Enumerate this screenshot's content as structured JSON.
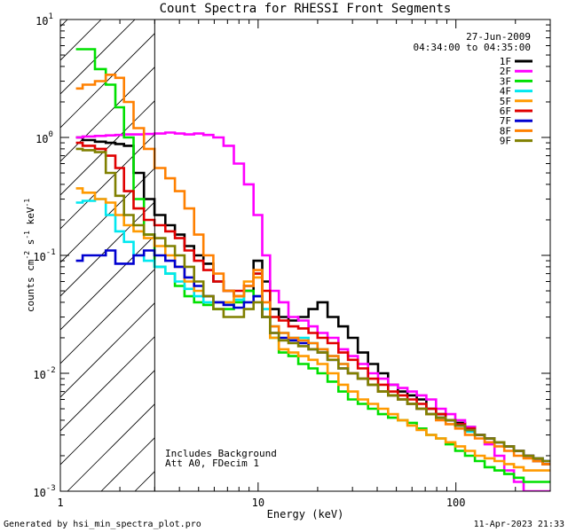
{
  "chart_data": {
    "type": "line",
    "step": true,
    "title": "Count Spectra for RHESSI Front Segments",
    "xlabel": "Energy (keV)",
    "ylabel_parts": {
      "a": "counts cm",
      "b": "-2",
      "c": " s",
      "d": "-1",
      "e": " keV",
      "f": "-1"
    },
    "xscale": "log",
    "yscale": "log",
    "xlim": [
      1,
      300
    ],
    "ylim": [
      0.001,
      10
    ],
    "x_ticks": [
      {
        "value": 1,
        "label": "1"
      },
      {
        "value": 10,
        "label": "10"
      },
      {
        "value": 100,
        "label": "100"
      }
    ],
    "y_ticks": [
      {
        "value": 10,
        "base": "10",
        "exp": "1"
      },
      {
        "value": 1,
        "base": "10",
        "exp": "0"
      },
      {
        "value": 0.1,
        "base": "10",
        "exp": "-1"
      },
      {
        "value": 0.01,
        "base": "10",
        "exp": "-2"
      },
      {
        "value": 0.001,
        "base": "10",
        "exp": "-3"
      }
    ],
    "date": "27-Jun-2009",
    "time_range": "04:34:00 to 04:35:00",
    "note_lines": [
      "Includes Background",
      "Att A0, FDecim 1"
    ],
    "shaded_region": {
      "from_keV": 1,
      "to_keV": 3,
      "pattern": "diagonal hatch"
    },
    "legend_position": "top-right",
    "x_energies": [
      1.2,
      1.4,
      1.6,
      1.8,
      2.0,
      2.2,
      2.5,
      2.8,
      3.2,
      3.6,
      4.0,
      4.5,
      5.0,
      5.6,
      6.3,
      7.1,
      8.0,
      9.0,
      10.0,
      11.0,
      12.0,
      13.5,
      15.0,
      17.0,
      19.0,
      21.0,
      24.0,
      27.0,
      30.0,
      34.0,
      38.0,
      43.0,
      48.0,
      54.0,
      60.0,
      67.0,
      75.0,
      84.0,
      94.0,
      105.0,
      118.0,
      132.0,
      148.0,
      166.0,
      186.0,
      208.0,
      233.0,
      260.0,
      290.0
    ],
    "series": [
      {
        "name": "1F",
        "color": "#000000",
        "values": [
          1.0,
          0.95,
          0.92,
          0.9,
          0.88,
          0.85,
          0.5,
          0.3,
          0.22,
          0.18,
          0.15,
          0.12,
          0.1,
          0.085,
          0.06,
          0.05,
          0.045,
          0.05,
          0.09,
          0.06,
          0.035,
          0.03,
          0.028,
          0.03,
          0.035,
          0.04,
          0.03,
          0.025,
          0.02,
          0.015,
          0.012,
          0.01,
          0.008,
          0.007,
          0.0065,
          0.006,
          0.005,
          0.0045,
          0.004,
          0.0038,
          0.0035,
          0.003,
          0.0028,
          0.0026,
          0.0024,
          0.0022,
          0.002,
          0.0018,
          0.0017
        ]
      },
      {
        "name": "2F",
        "color": "#ff00ff",
        "values": [
          1.0,
          1.02,
          1.03,
          1.04,
          1.05,
          1.06,
          1.06,
          1.07,
          1.08,
          1.1,
          1.08,
          1.06,
          1.08,
          1.05,
          1.0,
          0.85,
          0.6,
          0.4,
          0.22,
          0.1,
          0.05,
          0.04,
          0.03,
          0.028,
          0.025,
          0.022,
          0.02,
          0.016,
          0.014,
          0.012,
          0.01,
          0.009,
          0.008,
          0.0075,
          0.007,
          0.0065,
          0.006,
          0.005,
          0.0045,
          0.004,
          0.0035,
          0.003,
          0.0025,
          0.002,
          0.0015,
          0.0012,
          0.001,
          0.001,
          0.001
        ]
      },
      {
        "name": "3F",
        "color": "#00e000",
        "values": [
          5.6,
          5.6,
          3.8,
          2.8,
          1.8,
          1.0,
          0.3,
          0.15,
          0.08,
          0.07,
          0.055,
          0.045,
          0.04,
          0.038,
          0.035,
          0.035,
          0.04,
          0.05,
          0.045,
          0.03,
          0.02,
          0.015,
          0.014,
          0.012,
          0.011,
          0.01,
          0.0085,
          0.007,
          0.006,
          0.0055,
          0.005,
          0.0045,
          0.0042,
          0.004,
          0.0038,
          0.0034,
          0.003,
          0.0028,
          0.0025,
          0.0022,
          0.002,
          0.0018,
          0.0016,
          0.0015,
          0.0014,
          0.0013,
          0.0012,
          0.0012,
          0.0012
        ]
      },
      {
        "name": "4F",
        "color": "#00e8f0",
        "values": [
          0.28,
          0.29,
          0.3,
          0.22,
          0.16,
          0.13,
          0.1,
          0.09,
          0.08,
          0.07,
          0.06,
          0.052,
          0.045,
          0.04,
          0.04,
          0.04,
          0.042,
          0.055,
          0.07,
          0.035,
          0.025,
          0.022,
          0.02,
          0.02,
          0.018,
          0.016,
          0.014,
          0.012,
          0.01,
          0.009,
          0.008,
          0.007,
          0.0065,
          0.006,
          0.0055,
          0.005,
          0.0045,
          0.0042,
          0.004,
          0.0036,
          0.0032,
          0.003,
          0.0028,
          0.0026,
          0.0024,
          0.0022,
          0.002,
          0.0019,
          0.0018
        ]
      },
      {
        "name": "5F",
        "color": "#ff9a00",
        "values": [
          0.37,
          0.34,
          0.3,
          0.28,
          0.22,
          0.18,
          0.16,
          0.14,
          0.12,
          0.1,
          0.08,
          0.06,
          0.05,
          0.045,
          0.04,
          0.04,
          0.045,
          0.06,
          0.065,
          0.03,
          0.02,
          0.016,
          0.015,
          0.014,
          0.013,
          0.012,
          0.01,
          0.008,
          0.007,
          0.006,
          0.0055,
          0.005,
          0.0045,
          0.004,
          0.0036,
          0.0033,
          0.003,
          0.0028,
          0.0026,
          0.0024,
          0.0022,
          0.002,
          0.0019,
          0.0018,
          0.0017,
          0.0016,
          0.0015,
          0.0015,
          0.0015
        ]
      },
      {
        "name": "6F",
        "color": "#e00000",
        "values": [
          0.9,
          0.85,
          0.8,
          0.7,
          0.55,
          0.35,
          0.25,
          0.2,
          0.18,
          0.16,
          0.14,
          0.11,
          0.09,
          0.075,
          0.06,
          0.05,
          0.05,
          0.055,
          0.07,
          0.05,
          0.03,
          0.028,
          0.025,
          0.024,
          0.022,
          0.02,
          0.018,
          0.015,
          0.013,
          0.011,
          0.009,
          0.008,
          0.007,
          0.0065,
          0.006,
          0.0055,
          0.005,
          0.0045,
          0.004,
          0.0037,
          0.0034,
          0.003,
          0.0028,
          0.0026,
          0.0024,
          0.0022,
          0.002,
          0.0018,
          0.0017
        ]
      },
      {
        "name": "7F",
        "color": "#0000d0",
        "values": [
          0.09,
          0.1,
          0.1,
          0.11,
          0.085,
          0.085,
          0.1,
          0.11,
          0.1,
          0.09,
          0.08,
          0.065,
          0.055,
          0.045,
          0.04,
          0.038,
          0.036,
          0.04,
          0.045,
          0.03,
          0.022,
          0.02,
          0.019,
          0.018,
          0.016,
          0.015,
          0.013,
          0.011,
          0.01,
          0.009,
          0.008,
          0.007,
          0.0065,
          0.006,
          0.0055,
          0.005,
          0.0045,
          0.0042,
          0.004,
          0.0036,
          0.0033,
          0.003,
          0.0028,
          0.0026,
          0.0024,
          0.0022,
          0.002,
          0.0019,
          0.0018
        ]
      },
      {
        "name": "8F",
        "color": "#ff8000",
        "values": [
          2.6,
          2.8,
          3.0,
          3.4,
          3.2,
          2.0,
          1.2,
          0.8,
          0.55,
          0.45,
          0.35,
          0.25,
          0.15,
          0.1,
          0.07,
          0.05,
          0.045,
          0.055,
          0.075,
          0.04,
          0.025,
          0.022,
          0.02,
          0.019,
          0.018,
          0.016,
          0.014,
          0.012,
          0.01,
          0.009,
          0.008,
          0.007,
          0.0065,
          0.006,
          0.0055,
          0.005,
          0.0045,
          0.004,
          0.0037,
          0.0034,
          0.003,
          0.0028,
          0.0026,
          0.0024,
          0.0022,
          0.002,
          0.0019,
          0.0018,
          0.0017
        ]
      },
      {
        "name": "9F",
        "color": "#808000",
        "values": [
          0.8,
          0.78,
          0.75,
          0.5,
          0.32,
          0.22,
          0.18,
          0.15,
          0.14,
          0.12,
          0.1,
          0.08,
          0.06,
          0.045,
          0.035,
          0.03,
          0.03,
          0.035,
          0.04,
          0.03,
          0.022,
          0.019,
          0.018,
          0.017,
          0.016,
          0.015,
          0.013,
          0.011,
          0.01,
          0.009,
          0.008,
          0.007,
          0.0065,
          0.006,
          0.0055,
          0.005,
          0.0045,
          0.0042,
          0.004,
          0.0036,
          0.0033,
          0.003,
          0.0028,
          0.0026,
          0.0024,
          0.0022,
          0.002,
          0.0019,
          0.0018
        ]
      }
    ]
  },
  "footer": {
    "generated_by": "Generated by hsi_min_spectra_plot.pro",
    "timestamp": "11-Apr-2023 21:33"
  }
}
